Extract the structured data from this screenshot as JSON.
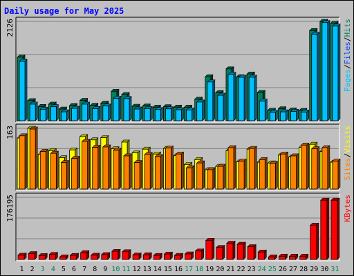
{
  "chart_data": {
    "type": "bar",
    "title": "Daily usage for May 2025",
    "categories": [
      "1",
      "2",
      "3",
      "4",
      "5",
      "6",
      "7",
      "8",
      "9",
      "10",
      "11",
      "12",
      "13",
      "14",
      "15",
      "16",
      "17",
      "18",
      "19",
      "20",
      "21",
      "22",
      "23",
      "24",
      "25",
      "26",
      "27",
      "28",
      "29",
      "30",
      "31"
    ],
    "weekend_categories": [
      "3",
      "4",
      "10",
      "11",
      "17",
      "18",
      "24",
      "25",
      "31"
    ],
    "panels": [
      {
        "id": "hits",
        "ylabel_parts": [
          "Pages",
          "Files",
          "Hits"
        ],
        "ymax_label": "2126",
        "ymax": 2126,
        "series": [
          {
            "name": "Hits",
            "color": "#00805c",
            "values": [
              1360,
              430,
              305,
              355,
              250,
              325,
              435,
              330,
              375,
              630,
              560,
              310,
              315,
              290,
              300,
              290,
              290,
              460,
              940,
              600,
              1110,
              940,
              1000,
              605,
              225,
              255,
              230,
              220,
              1930,
              2126,
              2085
            ]
          },
          {
            "name": "Files",
            "color": "#0040ff",
            "values": [
              0,
              0,
              0,
              0,
              0,
              0,
              0,
              0,
              0,
              0,
              0,
              0,
              0,
              0,
              0,
              0,
              0,
              0,
              0,
              0,
              0,
              0,
              0,
              0,
              0,
              0,
              0,
              0,
              0,
              0,
              0
            ]
          },
          {
            "name": "Pages",
            "color": "#00c0ff",
            "values": [
              1270,
              355,
              245,
              300,
              190,
              265,
              355,
              260,
              315,
              480,
              475,
              250,
              260,
              240,
              255,
              235,
              230,
              400,
              830,
              545,
              990,
              930,
              930,
              420,
              180,
              190,
              200,
              185,
              1850,
              2100,
              2025
            ]
          }
        ]
      },
      {
        "id": "visits",
        "ylabel_parts": [
          "Sites",
          "Visits"
        ],
        "ymax_label": "163",
        "ymax": 163,
        "series": [
          {
            "name": "Visits",
            "color": "#ffff00",
            "values": [
              137,
              163,
              93,
              103,
              84,
              105,
              141,
              132,
              138,
              108,
              126,
              97,
              107,
              94,
              109,
              90,
              66,
              79,
              52,
              61,
              103,
              73,
              107,
              72,
              70,
              91,
              86,
              112,
              120,
              101,
              72
            ]
          },
          {
            "name": "Sites",
            "color": "#ff8000",
            "values": [
              143,
              161,
              101,
              96,
              71,
              82,
              128,
              112,
              113,
              104,
              89,
              71,
              93,
              87,
              110,
              94,
              57,
              70,
              52,
              61,
              111,
              75,
              109,
              79,
              69,
              94,
              89,
              118,
              108,
              111,
              75
            ]
          }
        ]
      },
      {
        "id": "kbytes",
        "ylabel_parts": [
          "KBytes"
        ],
        "ymax_label": "176195",
        "ymax": 176195,
        "series": [
          {
            "name": "KBytes",
            "color": "#ff0000",
            "values": [
              12000,
              16500,
              11000,
              14000,
              7000,
              11500,
              19000,
              12000,
              13500,
              23000,
              22000,
              12500,
              13000,
              11500,
              15000,
              11500,
              15500,
              24000,
              54000,
              34000,
              46000,
              43000,
              36000,
              21000,
              7000,
              9000,
              9000,
              9000,
              97000,
              168000,
              168000
            ]
          }
        ]
      }
    ],
    "grid": true,
    "colors": {
      "background": "#c0c0c0",
      "plot_background": "#c0c0c0",
      "title": "#0000ff",
      "weekday_label": "#000000",
      "weekend_label": "#00805c",
      "gridline": "#808080",
      "bar_outline": "#000000"
    }
  }
}
